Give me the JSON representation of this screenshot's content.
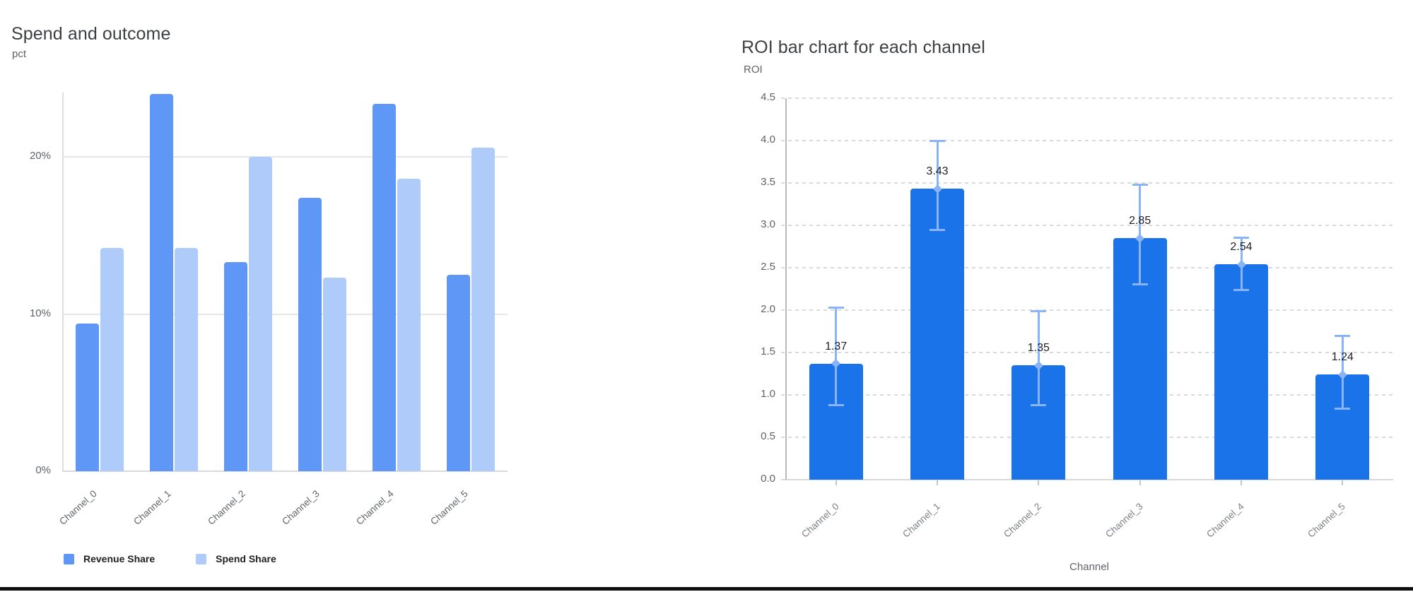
{
  "chart_data": [
    {
      "type": "bar",
      "title": "Spend and outcome",
      "ylabel": "pct",
      "xlabel": "",
      "categories": [
        "Channel_0",
        "Channel_1",
        "Channel_2",
        "Channel_3",
        "Channel_4",
        "Channel_5"
      ],
      "series": [
        {
          "name": "Revenue Share",
          "color": "#5e97f6",
          "values": [
            9.4,
            24.0,
            13.3,
            17.4,
            23.4,
            12.5
          ]
        },
        {
          "name": "Spend Share",
          "color": "#aecbfa",
          "values": [
            14.2,
            14.2,
            20.0,
            12.3,
            18.6,
            20.6
          ]
        }
      ],
      "yticks": [
        "0%",
        "10%",
        "20%"
      ],
      "ylim": [
        0,
        24.1
      ],
      "grid": "solid horizontal",
      "legend_position": "bottom-left"
    },
    {
      "type": "bar",
      "title": "ROI bar chart for each channel",
      "ylabel": "ROI",
      "xlabel": "Channel",
      "categories": [
        "Channel_0",
        "Channel_1",
        "Channel_2",
        "Channel_3",
        "Channel_4",
        "Channel_5"
      ],
      "values": [
        1.37,
        3.43,
        1.35,
        2.85,
        2.54,
        1.24
      ],
      "value_labels": [
        "1.37",
        "3.43",
        "1.35",
        "2.85",
        "2.54",
        "1.24"
      ],
      "error_low": [
        0.88,
        2.95,
        0.88,
        2.31,
        2.24,
        0.84
      ],
      "error_high": [
        2.03,
        4.0,
        1.99,
        3.48,
        2.86,
        1.7
      ],
      "bar_color": "#1a73e8",
      "error_color": "#8ab4f8",
      "value_label_color": "#202124",
      "yticks": [
        "0.0",
        "0.5",
        "1.0",
        "1.5",
        "2.0",
        "2.5",
        "3.0",
        "3.5",
        "4.0",
        "4.5"
      ],
      "ylim": [
        0,
        4.5
      ],
      "grid": "dashed horizontal",
      "legend_position": "none"
    }
  ]
}
